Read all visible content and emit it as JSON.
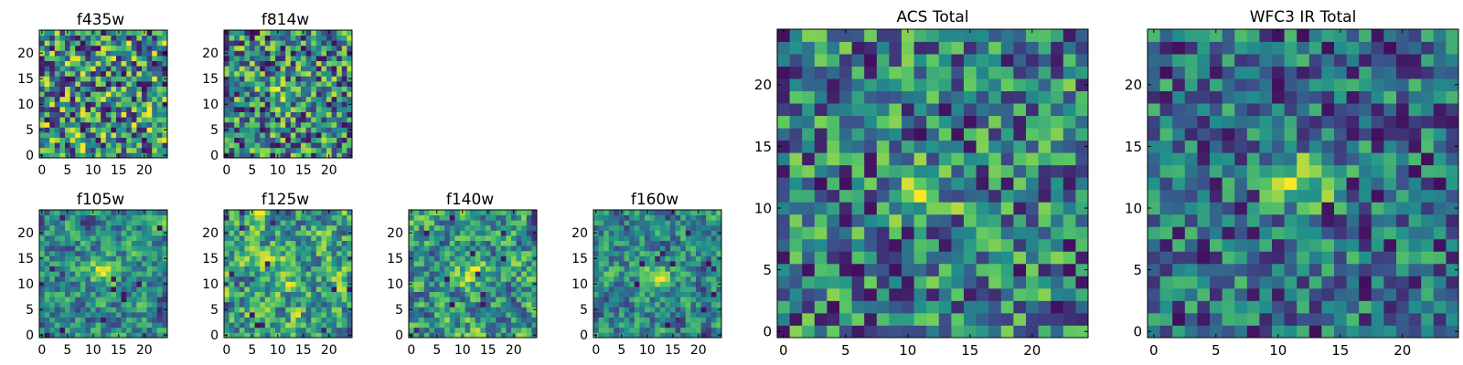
{
  "figure": {
    "colormap": [
      "#440154",
      "#3b528b",
      "#21918c",
      "#5ec962",
      "#fde725"
    ],
    "grid": false,
    "legend": "none"
  },
  "chart_data": [
    {
      "type": "heatmap",
      "title": "f435w",
      "xticks": [
        "0",
        "5",
        "10",
        "15",
        "20"
      ],
      "yticks": [
        "0",
        "5",
        "10",
        "15",
        "20"
      ],
      "xlim": [
        -0.5,
        24.5
      ],
      "ylim": [
        -0.5,
        24.5
      ],
      "grid_size": 25,
      "seed": 11,
      "smooth": 0,
      "blob": 0.0
    },
    {
      "type": "heatmap",
      "title": "f814w",
      "xticks": [
        "0",
        "5",
        "10",
        "15",
        "20"
      ],
      "yticks": [
        "0",
        "5",
        "10",
        "15",
        "20"
      ],
      "xlim": [
        -0.5,
        24.5
      ],
      "ylim": [
        -0.5,
        24.5
      ],
      "grid_size": 25,
      "seed": 23,
      "smooth": 0,
      "blob": 0.25
    },
    {
      "type": "heatmap",
      "title": "f105w",
      "xticks": [
        "0",
        "5",
        "10",
        "15",
        "20"
      ],
      "yticks": [
        "0",
        "5",
        "10",
        "15",
        "20"
      ],
      "xlim": [
        -0.5,
        24.5
      ],
      "ylim": [
        -0.5,
        24.5
      ],
      "grid_size": 25,
      "seed": 37,
      "smooth": 1,
      "blob": 0.35
    },
    {
      "type": "heatmap",
      "title": "f125w",
      "xticks": [
        "0",
        "5",
        "10",
        "15",
        "20"
      ],
      "yticks": [
        "0",
        "5",
        "10",
        "15",
        "20"
      ],
      "xlim": [
        -0.5,
        24.5
      ],
      "ylim": [
        -0.5,
        24.5
      ],
      "grid_size": 25,
      "seed": 41,
      "smooth": 1,
      "blob": 0.2
    },
    {
      "type": "heatmap",
      "title": "f140w",
      "xticks": [
        "0",
        "5",
        "10",
        "15",
        "20"
      ],
      "yticks": [
        "0",
        "5",
        "10",
        "15",
        "20"
      ],
      "xlim": [
        -0.5,
        24.5
      ],
      "ylim": [
        -0.5,
        24.5
      ],
      "grid_size": 25,
      "seed": 53,
      "smooth": 1,
      "blob": 0.2
    },
    {
      "type": "heatmap",
      "title": "f160w",
      "xticks": [
        "0",
        "5",
        "10",
        "15",
        "20"
      ],
      "yticks": [
        "0",
        "5",
        "10",
        "15",
        "20"
      ],
      "xlim": [
        -0.5,
        24.5
      ],
      "ylim": [
        -0.5,
        24.5
      ],
      "grid_size": 25,
      "seed": 67,
      "smooth": 1,
      "blob": 0.3
    },
    {
      "type": "heatmap",
      "title": "ACS Total",
      "xticks": [
        "0",
        "5",
        "10",
        "15",
        "20"
      ],
      "yticks": [
        "0",
        "5",
        "10",
        "15",
        "20"
      ],
      "xlim": [
        -0.5,
        24.5
      ],
      "ylim": [
        -0.5,
        24.5
      ],
      "grid_size": 25,
      "seed": 79,
      "smooth": 0,
      "blob": 0.3
    },
    {
      "type": "heatmap",
      "title": "WFC3 IR Total",
      "xticks": [
        "0",
        "5",
        "10",
        "15",
        "20"
      ],
      "yticks": [
        "0",
        "5",
        "10",
        "15",
        "20"
      ],
      "xlim": [
        -0.5,
        24.5
      ],
      "ylim": [
        -0.5,
        24.5
      ],
      "grid_size": 25,
      "seed": 97,
      "smooth": 0,
      "blob": 0.55
    }
  ]
}
